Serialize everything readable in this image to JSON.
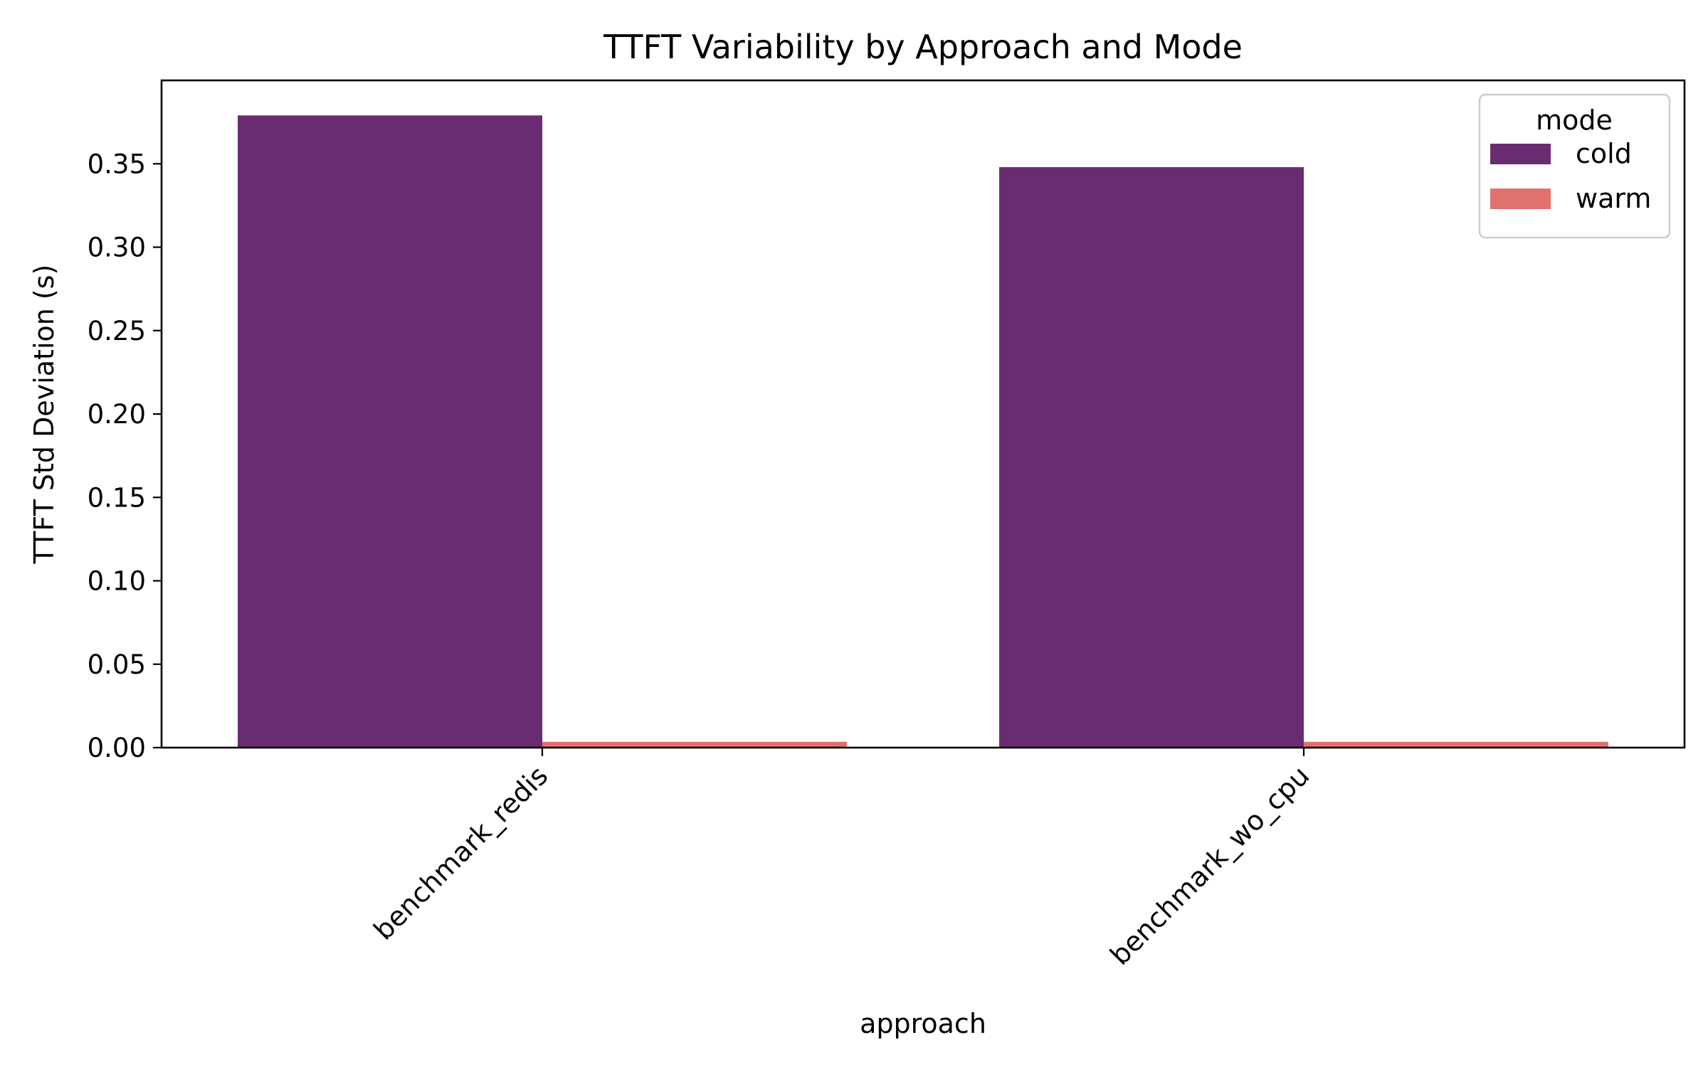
{
  "chart_data": {
    "type": "bar",
    "title": "TTFT Variability by Approach and Mode",
    "xlabel": "approach",
    "ylabel": "TTFT Std Deviation (s)",
    "categories": [
      "benchmark_redis",
      "benchmark_wo_cpu"
    ],
    "series": [
      {
        "name": "cold",
        "color": "#6a2c70",
        "values": [
          0.379,
          0.348
        ]
      },
      {
        "name": "warm",
        "color": "#e0716e",
        "values": [
          0.0035,
          0.0035
        ]
      }
    ],
    "ylim": [
      0,
      0.4
    ],
    "yticks": [
      0.0,
      0.05,
      0.1,
      0.15,
      0.2,
      0.25,
      0.3,
      0.35
    ],
    "ytick_labels": [
      "0.00",
      "0.05",
      "0.10",
      "0.15",
      "0.20",
      "0.25",
      "0.30",
      "0.35"
    ],
    "grid": false,
    "legend": {
      "title": "mode",
      "placement": "top-right",
      "entries": [
        "cold",
        "warm"
      ]
    }
  }
}
